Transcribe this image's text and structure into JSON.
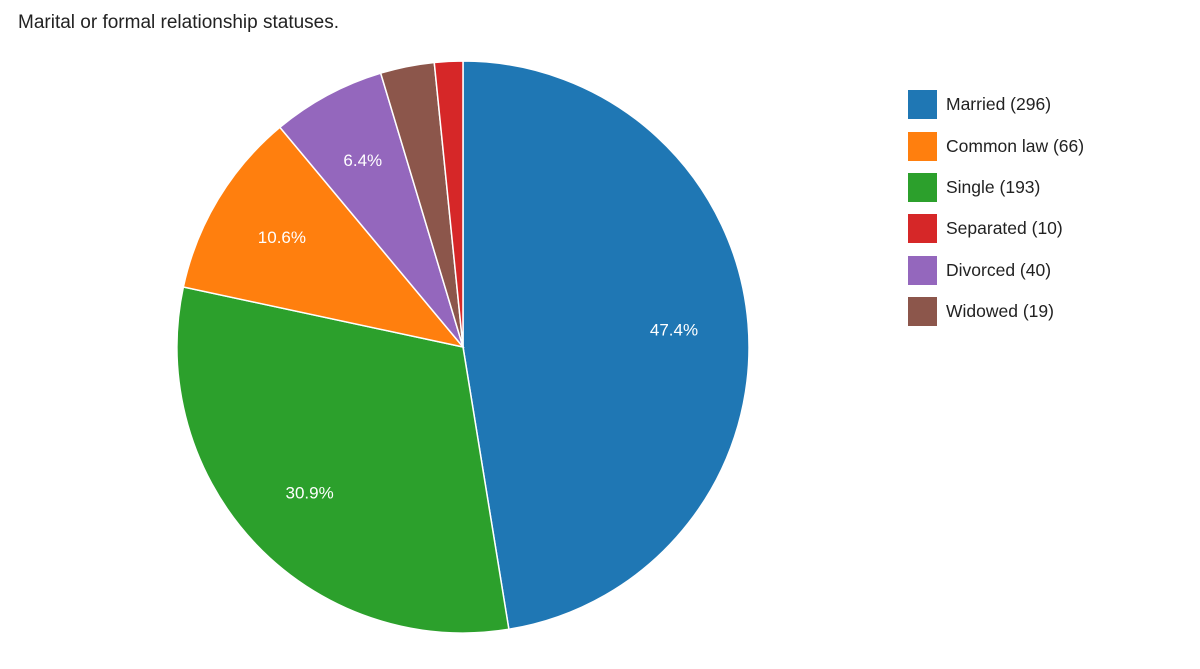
{
  "chart_data": {
    "type": "pie",
    "title": "Marital or formal relationship statuses.",
    "legend_position": "right",
    "slices": [
      {
        "name": "Married",
        "count": 296,
        "legend_label": "Married (296)",
        "percent": 47.4,
        "data_label": "47.4%",
        "color": "#1f77b4"
      },
      {
        "name": "Single",
        "count": 193,
        "legend_label": "Single (193)",
        "percent": 30.9,
        "data_label": "30.9%",
        "color": "#2ca02c"
      },
      {
        "name": "Common law",
        "count": 66,
        "legend_label": "Common law (66)",
        "percent": 10.6,
        "data_label": "10.6%",
        "color": "#ff7f0e"
      },
      {
        "name": "Divorced",
        "count": 40,
        "legend_label": "Divorced (40)",
        "percent": 6.4,
        "data_label": "6.4%",
        "color": "#9467bd"
      },
      {
        "name": "Widowed",
        "count": 19,
        "legend_label": "Widowed (19)",
        "percent": 3.0,
        "data_label": "",
        "color": "#8c564b"
      },
      {
        "name": "Separated",
        "count": 10,
        "legend_label": "Separated (10)",
        "percent": 1.6,
        "data_label": "",
        "color": "#d62728"
      }
    ],
    "legend_order": [
      "Married",
      "Common law",
      "Single",
      "Separated",
      "Divorced",
      "Widowed"
    ]
  }
}
